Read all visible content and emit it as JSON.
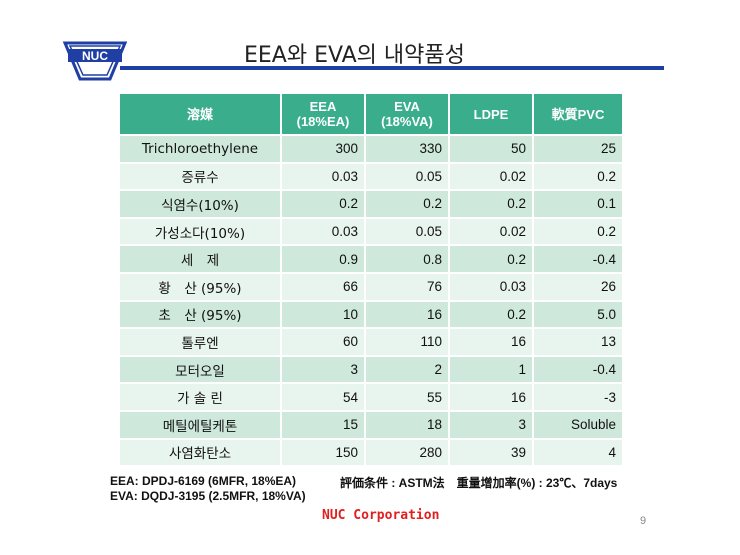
{
  "logo": {
    "text": "NUC",
    "color": "#1f3fa5"
  },
  "title": "EEA와 EVA의 내약품성",
  "table": {
    "headers": [
      {
        "line1": "溶媒",
        "line2": ""
      },
      {
        "line1": "EEA",
        "line2": "(18%EA)"
      },
      {
        "line1": "EVA",
        "line2": "(18%VA)"
      },
      {
        "line1": "LDPE",
        "line2": ""
      },
      {
        "line1": "軟質PVC",
        "line2": ""
      }
    ],
    "rows": [
      {
        "name": "Trichloroethylene",
        "values": [
          "300",
          "330",
          "50",
          "25"
        ]
      },
      {
        "name": "증류수",
        "values": [
          "0.03",
          "0.05",
          "0.02",
          "0.2"
        ]
      },
      {
        "name": "식염수(10%)",
        "values": [
          "0.2",
          "0.2",
          "0.2",
          "0.1"
        ]
      },
      {
        "name": "가성소다(10%)",
        "values": [
          "0.03",
          "0.05",
          "0.02",
          "0.2"
        ]
      },
      {
        "name": "세　제",
        "values": [
          "0.9",
          "0.8",
          "0.2",
          "-0.4"
        ]
      },
      {
        "name": "황　산 (95%)",
        "values": [
          "66",
          "76",
          "0.03",
          "26"
        ]
      },
      {
        "name": "초　산 (95%)",
        "values": [
          "10",
          "16",
          "0.2",
          "5.0"
        ]
      },
      {
        "name": "톨루엔",
        "values": [
          "60",
          "110",
          "16",
          "13"
        ]
      },
      {
        "name": "모터오일",
        "values": [
          "3",
          "2",
          "1",
          "-0.4"
        ]
      },
      {
        "name": "가 솔 린",
        "values": [
          "54",
          "55",
          "16",
          "-3"
        ]
      },
      {
        "name": "메틸에틸케톤",
        "values": [
          "15",
          "18",
          "3",
          "Soluble"
        ]
      },
      {
        "name": "사염화탄소",
        "values": [
          "150",
          "280",
          "39",
          "4"
        ]
      }
    ],
    "colors": {
      "header": "#3aae8c",
      "row_odd": "#cfe8dc",
      "row_even": "#e8f4ee"
    }
  },
  "footnotes": {
    "eea": "EEA: DPDJ-6169 (6MFR, 18%EA)",
    "eva": "EVA: DQDJ-3195 (2.5MFR, 18%VA)",
    "conditions": "評価条件 :  ASTM法　重量增加率(%) :  23℃、7days"
  },
  "corporation": "NUC Corporation",
  "page_number": "9"
}
